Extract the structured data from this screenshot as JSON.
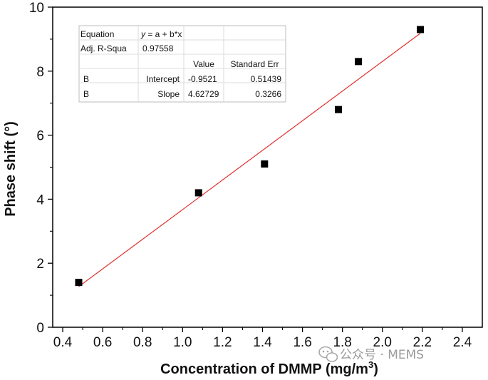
{
  "chart_data": {
    "type": "scatter",
    "xlabel": "Concentration of DMMP (mg/m",
    "xlabel_sup": "3",
    "xlabel_close": ")",
    "ylabel": "Phase shift (°)",
    "xlim": [
      0.35,
      2.5
    ],
    "ylim": [
      0,
      10
    ],
    "xticks": [
      "0.4",
      "0.6",
      "0.8",
      "1.0",
      "1.2",
      "1.4",
      "1.6",
      "1.8",
      "2.0",
      "2.2",
      "2.4"
    ],
    "yticks": [
      "0",
      "2",
      "4",
      "6",
      "8",
      "10"
    ],
    "series": [
      {
        "marker": "square",
        "color": "#000000",
        "points": [
          {
            "x": 0.48,
            "y": 1.4
          },
          {
            "x": 1.08,
            "y": 4.2
          },
          {
            "x": 1.41,
            "y": 5.1
          },
          {
            "x": 1.78,
            "y": 6.8
          },
          {
            "x": 1.88,
            "y": 8.3
          },
          {
            "x": 2.19,
            "y": 9.3
          }
        ]
      }
    ],
    "fit_line": {
      "color": "#e03030",
      "intercept": -0.9521,
      "slope": 4.62729,
      "x_range": [
        0.48,
        2.19
      ]
    },
    "fit_table": {
      "rows": [
        [
          "Equation",
          "y = a + b*x",
          "",
          ""
        ],
        [
          "Adj. R-Squa",
          "0.97558",
          "",
          ""
        ],
        [
          "",
          "",
          "Value",
          "Standard Err"
        ],
        [
          "B",
          "Intercept",
          "-0.9521",
          "0.51439"
        ],
        [
          "B",
          "Slope",
          "4.62729",
          "0.3266"
        ]
      ]
    },
    "watermark": "公众号 · MEMS"
  }
}
